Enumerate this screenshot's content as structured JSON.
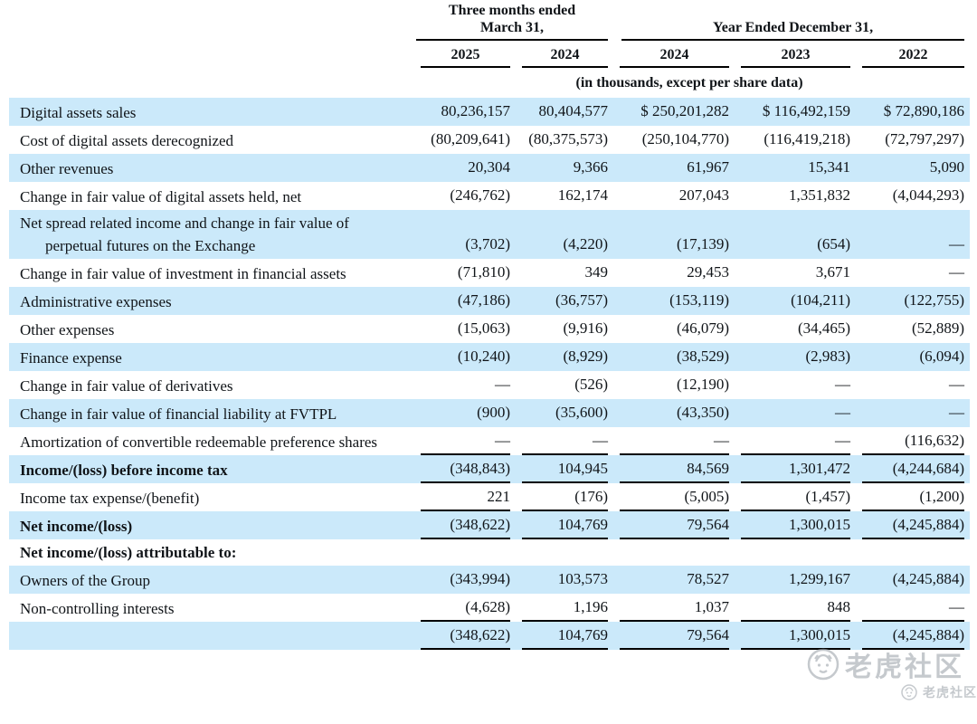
{
  "colors": {
    "row_shade": "#cbe9fa",
    "rule": "#000000",
    "text": "#101418",
    "watermark": "#9fa6ad"
  },
  "table": {
    "group_headers": [
      {
        "line1": "Three months ended",
        "line2": "March 31,",
        "span": 2
      },
      {
        "line1": "Year Ended December 31,",
        "span": 3
      }
    ],
    "year_columns": [
      "2025",
      "2024",
      "2024",
      "2023",
      "2022"
    ],
    "units_note": "(in thousands, except per share data)",
    "rows": [
      {
        "label": "Digital assets sales",
        "values": [
          "80,236,157",
          "80,404,577",
          "$ 250,201,282",
          "$ 116,492,159",
          "$ 72,890,186"
        ],
        "shade": true
      },
      {
        "label": "Cost of digital assets derecognized",
        "values": [
          "(80,209,641)",
          "(80,375,573)",
          "(250,104,770)",
          "(116,419,218)",
          "(72,797,297)"
        ]
      },
      {
        "label": "Other revenues",
        "values": [
          "20,304",
          "9,366",
          "61,967",
          "15,341",
          "5,090"
        ],
        "shade": true
      },
      {
        "label": "Change in fair value of digital assets held, net",
        "values": [
          "(246,762)",
          "162,174",
          "207,043",
          "1,351,832",
          "(4,044,293)"
        ]
      },
      {
        "label": "Net spread related income and change in fair value of perpetual futures on the Exchange",
        "values": [
          "(3,702)",
          "(4,220)",
          "(17,139)",
          "(654)",
          "—"
        ],
        "shade": true
      },
      {
        "label": "Change in fair value of investment in financial assets",
        "values": [
          "(71,810)",
          "349",
          "29,453",
          "3,671",
          "—"
        ]
      },
      {
        "label": "Administrative expenses",
        "values": [
          "(47,186)",
          "(36,757)",
          "(153,119)",
          "(104,211)",
          "(122,755)"
        ],
        "shade": true
      },
      {
        "label": "Other expenses",
        "values": [
          "(15,063)",
          "(9,916)",
          "(46,079)",
          "(34,465)",
          "(52,889)"
        ]
      },
      {
        "label": "Finance expense",
        "values": [
          "(10,240)",
          "(8,929)",
          "(38,529)",
          "(2,983)",
          "(6,094)"
        ],
        "shade": true
      },
      {
        "label": "Change in fair value of derivatives",
        "values": [
          "—",
          "(526)",
          "(12,190)",
          "—",
          "—"
        ]
      },
      {
        "label": "Change in fair value of financial liability at FVTPL",
        "values": [
          "(900)",
          "(35,600)",
          "(43,350)",
          "—",
          "—"
        ],
        "shade": true
      },
      {
        "label": "Amortization of convertible redeemable preference shares",
        "values": [
          "—",
          "—",
          "—",
          "—",
          "(116,632)"
        ],
        "rule": true
      },
      {
        "label": "Income/(loss) before income tax",
        "values": [
          "(348,843)",
          "104,945",
          "84,569",
          "1,301,472",
          "(4,244,684)"
        ],
        "shade": true,
        "bold": true,
        "rule": true
      },
      {
        "label": "Income tax expense/(benefit)",
        "values": [
          "221",
          "(176)",
          "(5,005)",
          "(1,457)",
          "(1,200)"
        ],
        "rule": true
      },
      {
        "label": "Net income/(loss)",
        "values": [
          "(348,622)",
          "104,769",
          "79,564",
          "1,300,015",
          "(4,245,884)"
        ],
        "shade": true,
        "bold": true,
        "rule": true
      },
      {
        "label": "Net income/(loss) attributable to:",
        "values": [
          "",
          "",
          "",
          "",
          ""
        ],
        "bold": true
      },
      {
        "label": "Owners of the Group",
        "values": [
          "(343,994)",
          "103,573",
          "78,527",
          "1,299,167",
          "(4,245,884)"
        ],
        "shade": true
      },
      {
        "label": "Non-controlling interests",
        "values": [
          "(4,628)",
          "1,196",
          "1,037",
          "848",
          "—"
        ],
        "rule": true
      },
      {
        "label": "",
        "values": [
          "(348,622)",
          "104,769",
          "79,564",
          "1,300,015",
          "(4,245,884)"
        ],
        "shade": true,
        "rule": true
      }
    ]
  },
  "watermark": {
    "text": "老虎社区"
  }
}
